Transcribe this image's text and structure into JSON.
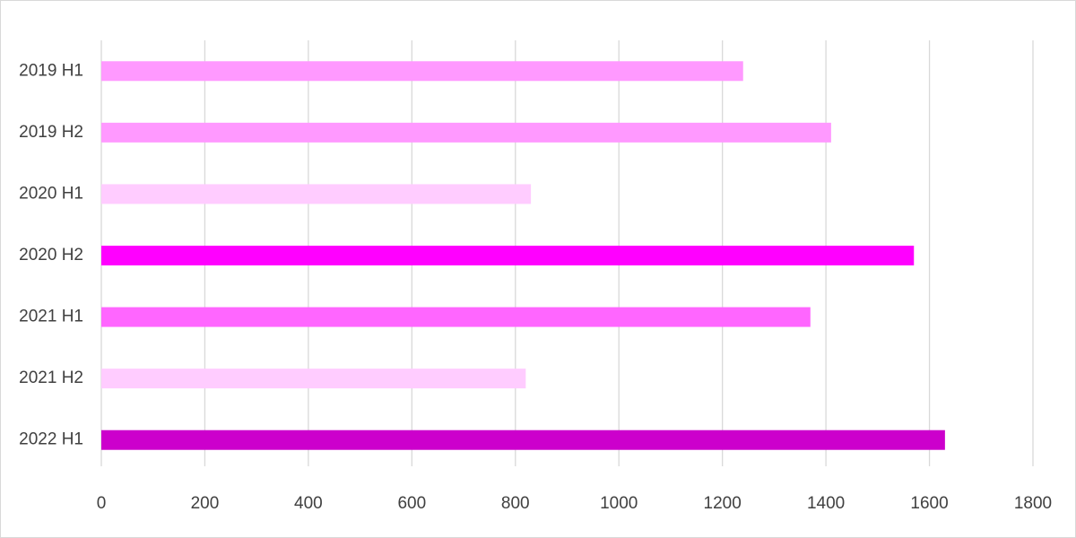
{
  "chart_data": {
    "type": "bar",
    "orientation": "horizontal",
    "categories": [
      "2019 H1",
      "2019 H2",
      "2020 H1",
      "2020 H2",
      "2021 H1",
      "2021 H2",
      "2022 H1"
    ],
    "values": [
      1240,
      1410,
      830,
      1570,
      1370,
      820,
      1630
    ],
    "colors": [
      "#ff99ff",
      "#ff99ff",
      "#ffccff",
      "#ff00ff",
      "#ff66ff",
      "#ffccff",
      "#cc00cc"
    ],
    "xlim": [
      0,
      1800
    ],
    "xticks": [
      0,
      200,
      400,
      600,
      800,
      1000,
      1200,
      1400,
      1600,
      1800
    ],
    "grid": true
  }
}
